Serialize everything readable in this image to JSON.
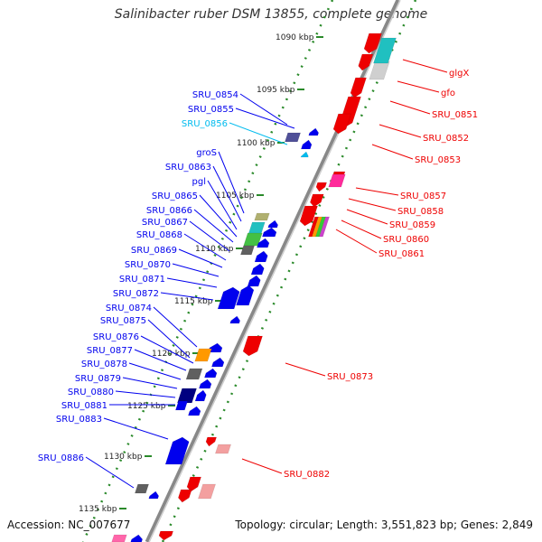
{
  "title": "Salinibacter ruber DSM 13855, complete genome",
  "accession": "Accession: NC_007677",
  "summary": "Topology: circular; Length: 3,551,823 bp; Genes: 2,849",
  "colors": {
    "forward": "#0000ee",
    "reverse": "#ee0000",
    "highlight": "#00bbee",
    "backbone": "#888888",
    "ticks": "#2a8a2a"
  },
  "kbp_ticks": [
    "1090 kbp",
    "1095 kbp",
    "1100 kbp",
    "1105 kbp",
    "1110 kbp",
    "1115 kbp",
    "1120 kbp",
    "1125 kbp",
    "1130 kbp",
    "1135 kbp"
  ],
  "left_labels": [
    {
      "text": "SRU_0854",
      "color": "#0000ee"
    },
    {
      "text": "SRU_0855",
      "color": "#0000ee"
    },
    {
      "text": "SRU_0856",
      "color": "#00bbee"
    },
    {
      "text": "groS",
      "color": "#0000ee"
    },
    {
      "text": "SRU_0863",
      "color": "#0000ee"
    },
    {
      "text": "pgl",
      "color": "#0000ee"
    },
    {
      "text": "SRU_0865",
      "color": "#0000ee"
    },
    {
      "text": "SRU_0866",
      "color": "#0000ee"
    },
    {
      "text": "SRU_0867",
      "color": "#0000ee"
    },
    {
      "text": "SRU_0868",
      "color": "#0000ee"
    },
    {
      "text": "SRU_0869",
      "color": "#0000ee"
    },
    {
      "text": "SRU_0870",
      "color": "#0000ee"
    },
    {
      "text": "SRU_0871",
      "color": "#0000ee"
    },
    {
      "text": "SRU_0872",
      "color": "#0000ee"
    },
    {
      "text": "SRU_0874",
      "color": "#0000ee"
    },
    {
      "text": "SRU_0875",
      "color": "#0000ee"
    },
    {
      "text": "SRU_0876",
      "color": "#0000ee"
    },
    {
      "text": "SRU_0877",
      "color": "#0000ee"
    },
    {
      "text": "SRU_0878",
      "color": "#0000ee"
    },
    {
      "text": "SRU_0879",
      "color": "#0000ee"
    },
    {
      "text": "SRU_0880",
      "color": "#0000ee"
    },
    {
      "text": "SRU_0881",
      "color": "#0000ee"
    },
    {
      "text": "SRU_0883",
      "color": "#0000ee"
    },
    {
      "text": "SRU_0886",
      "color": "#0000ee"
    }
  ],
  "right_labels": [
    {
      "text": "glgX"
    },
    {
      "text": "gfo"
    },
    {
      "text": "SRU_0851"
    },
    {
      "text": "SRU_0852"
    },
    {
      "text": "SRU_0853"
    },
    {
      "text": "SRU_0857"
    },
    {
      "text": "SRU_0858"
    },
    {
      "text": "SRU_0859"
    },
    {
      "text": "SRU_0860"
    },
    {
      "text": "SRU_0861"
    },
    {
      "text": "SRU_0873"
    },
    {
      "text": "SRU_0882"
    }
  ]
}
